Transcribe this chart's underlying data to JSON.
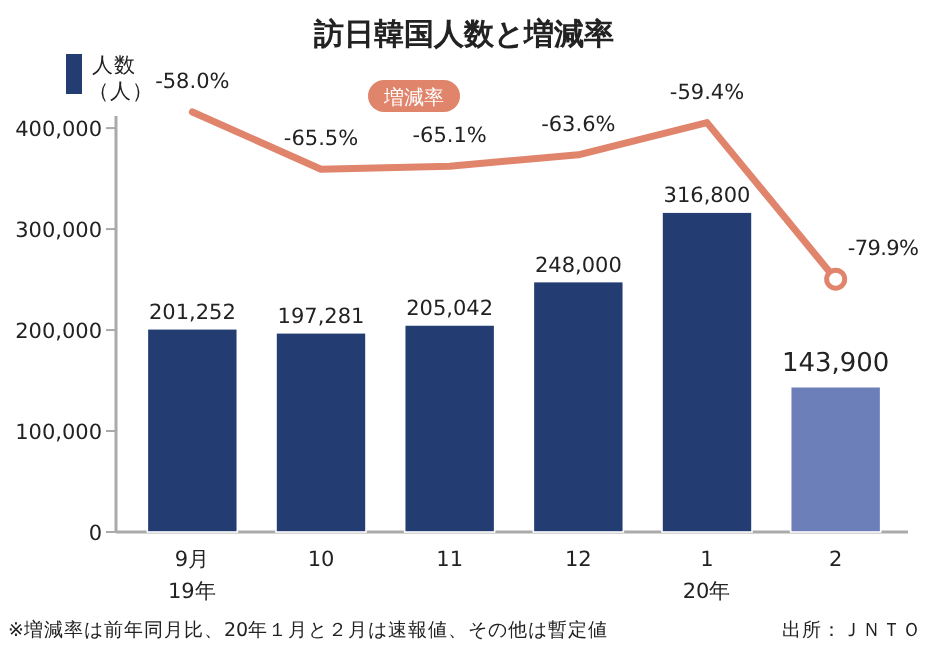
{
  "chart_data": {
    "type": "bar",
    "title": "訪日韓国人数と増減率",
    "categories": [
      "9月",
      "10",
      "11",
      "12",
      "1",
      "2"
    ],
    "series": [
      {
        "name": "人数（人）",
        "colors": [
          "#233d72",
          "#233d72",
          "#233d72",
          "#233d72",
          "#233d72",
          "#6d7fb8"
        ],
        "values": [
          201252,
          197281,
          205042,
          248000,
          316800,
          143900
        ],
        "value_labels": [
          "201,252",
          "197,281",
          "205,042",
          "248,000",
          "316,800",
          "143,900"
        ]
      },
      {
        "name": "増減率",
        "type": "line",
        "axis": "y2",
        "color": "#e0846c",
        "values": [
          -58.0,
          -65.5,
          -65.1,
          -63.6,
          -59.4,
          -79.9
        ],
        "value_labels": [
          "-58.0%",
          "-65.5%",
          "-65.1%",
          "-63.6%",
          "-59.4%",
          "-79.9%"
        ]
      }
    ],
    "ylim": [
      0,
      450000
    ],
    "yticks": [
      {
        "value": 0,
        "label": "0"
      },
      {
        "value": 100000,
        "label": "100,000"
      },
      {
        "value": 200000,
        "label": "200,000"
      },
      {
        "value": 300000,
        "label": "300,000"
      },
      {
        "value": 400000,
        "label": "400,000"
      }
    ],
    "y2lim": [
      -113,
      -53.5
    ],
    "tick_labels": "xy",
    "grid": false,
    "legend": "top left",
    "annotations": [
      "19年",
      "20年",
      "※増減率は前年同月比、20年１月と２月は速報値、その他は暫定値",
      "出所：ＪＮＴＯ"
    ]
  }
}
